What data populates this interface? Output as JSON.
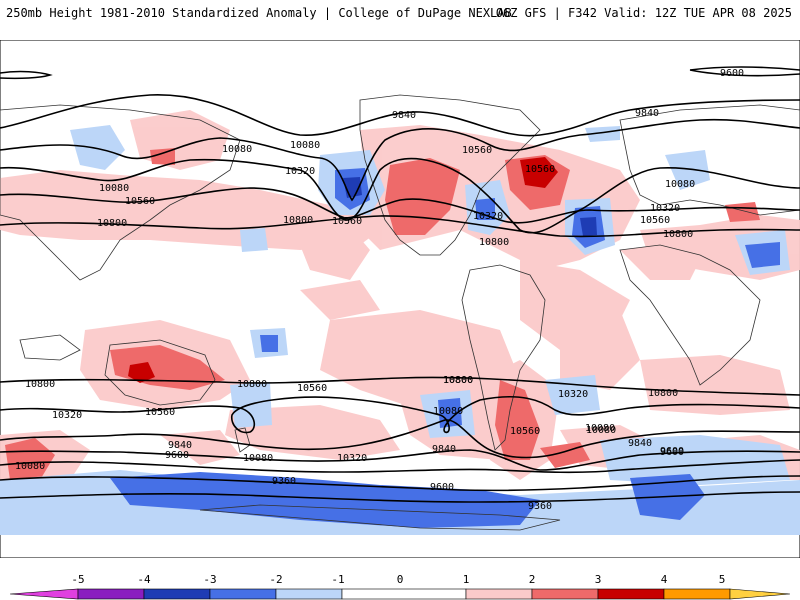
{
  "header": {
    "left": "250mb Height 1981-2010 Standardized Anomaly | College of DuPage NEXLAB",
    "right": "06Z GFS | F342 Valid: 12Z TUE APR 08 2025"
  },
  "colors": {
    "neg5": "#e040e0",
    "neg4": "#8a1ec0",
    "neg3": "#1e3cb4",
    "neg2": "#4670e6",
    "neg1": "#bcd6f8",
    "zero": "#ffffff",
    "pos1": "#fbcaca",
    "pos2": "#ee6a6a",
    "pos3": "#c80000",
    "pos4": "#ff9a00",
    "pos5": "#ffd040",
    "land": "#333333",
    "contour": "#000000"
  },
  "colorbar": {
    "labels": [
      "-5",
      "-4",
      "-3",
      "-2",
      "-1",
      "0",
      "1",
      "2",
      "3",
      "4",
      "5"
    ]
  },
  "contour_labels": [
    "9600",
    "9840",
    "9840",
    "10080",
    "10080",
    "10320",
    "10560",
    "10560",
    "10800",
    "10800",
    "10560",
    "10080",
    "10320",
    "10800",
    "10560",
    "10320",
    "10080",
    "10560",
    "10800",
    "10800",
    "10800",
    "10560",
    "10800",
    "10320",
    "10560",
    "10080",
    "10080",
    "10320",
    "9840",
    "9600",
    "10080",
    "10560",
    "10080",
    "9840",
    "9600",
    "9360",
    "9600",
    "9360",
    "10320",
    "10080",
    "9840",
    "9600",
    "10800",
    "10800"
  ]
}
